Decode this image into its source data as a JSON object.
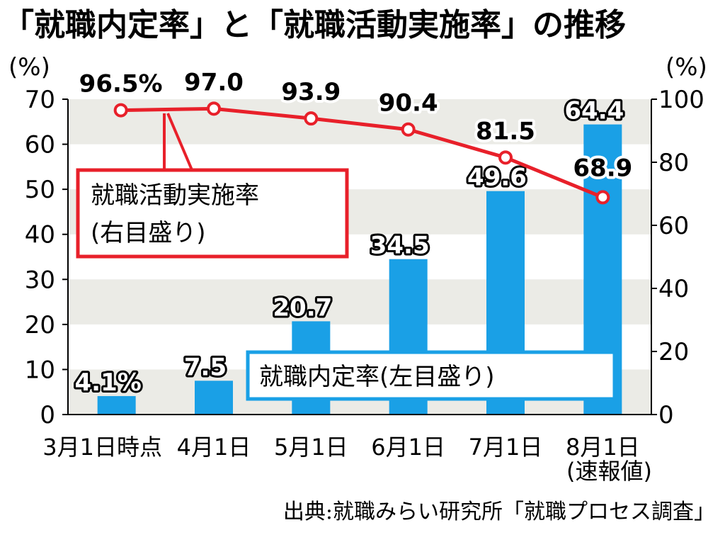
{
  "title": "「就職内定率」と「就職活動実施率」の推移",
  "source": "出典:就職みらい研究所「就職プロセス調査」",
  "left_unit": "(%)",
  "right_unit": "(%)",
  "colors": {
    "bar": "#1aa0e6",
    "line": "#e8202a",
    "band": "#ebebe6"
  },
  "chart_data": {
    "type": "bar",
    "categories": [
      "3月1日時点",
      "4月1日",
      "5月1日",
      "6月1日",
      "7月1日",
      "8月1日"
    ],
    "category_note": "(速報値)",
    "series": [
      {
        "name": "就職内定率(左目盛り)",
        "type": "bar",
        "axis": "left",
        "values": [
          4.1,
          7.5,
          20.7,
          34.5,
          49.6,
          64.4
        ],
        "labels": [
          "4.1%",
          "7.5",
          "20.7",
          "34.5",
          "49.6",
          "64.4"
        ]
      },
      {
        "name": "就職活動実施率(右目盛り)",
        "name_line1": "就職活動実施率",
        "name_line2": "(右目盛り)",
        "type": "line",
        "axis": "right",
        "values": [
          96.5,
          97.0,
          93.9,
          90.4,
          81.5,
          68.9
        ],
        "labels": [
          "96.5%",
          "97.0",
          "93.9",
          "90.4",
          "81.5",
          "68.9"
        ]
      }
    ],
    "left_axis": {
      "min": 0,
      "max": 70,
      "ticks": [
        0,
        10,
        20,
        30,
        40,
        50,
        60,
        70
      ]
    },
    "right_axis": {
      "min": 0,
      "max": 100,
      "ticks": [
        0,
        20,
        40,
        60,
        80,
        100
      ]
    },
    "grid": "alternating-bands"
  }
}
